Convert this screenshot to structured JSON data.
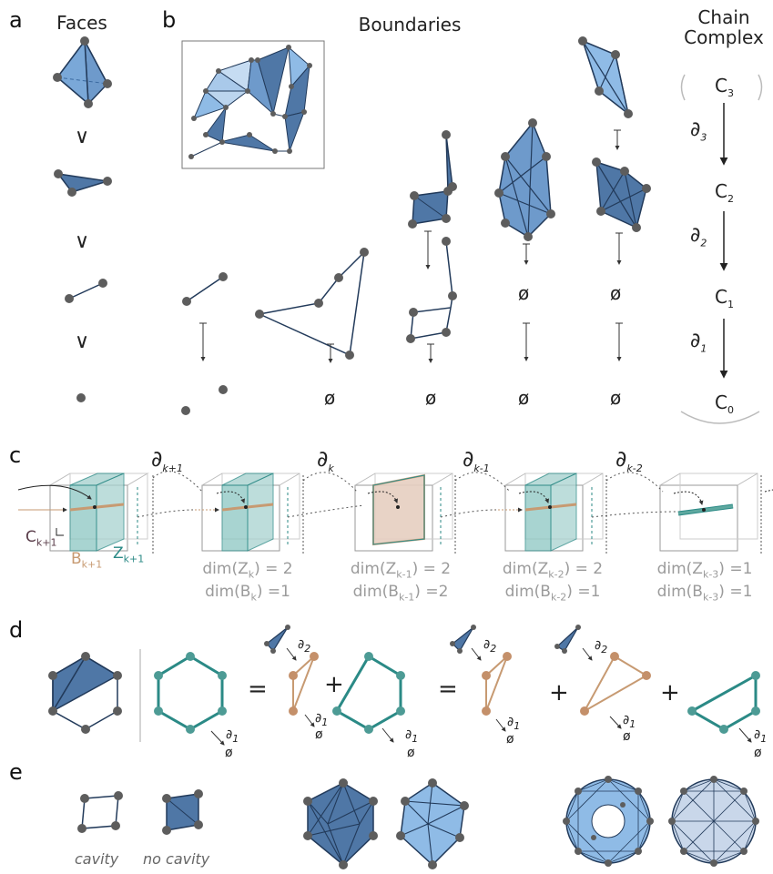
{
  "panels": {
    "a": {
      "letter": "a",
      "title": "Faces",
      "relation": "∨"
    },
    "b": {
      "letter": "b",
      "title": "Boundaries",
      "empty": "ø"
    },
    "chain": {
      "title_line1": "Chain",
      "title_line2": "Complex",
      "spaces": [
        {
          "base": "C",
          "sub": "3"
        },
        {
          "base": "C",
          "sub": "2"
        },
        {
          "base": "C",
          "sub": "1"
        },
        {
          "base": "C",
          "sub": "0"
        }
      ],
      "maps": [
        {
          "base": "∂",
          "sub": "3"
        },
        {
          "base": "∂",
          "sub": "2"
        },
        {
          "base": "∂",
          "sub": "1"
        }
      ]
    },
    "c": {
      "letter": "c",
      "operators": [
        {
          "base": "∂",
          "sub": "k+1"
        },
        {
          "base": "∂",
          "sub": "k"
        },
        {
          "base": "∂",
          "sub": "k-1"
        },
        {
          "base": "∂",
          "sub": "k-2"
        }
      ],
      "space_labels": [
        {
          "base": "C",
          "sub": "k+1"
        },
        {
          "base": "B",
          "sub": "k+1"
        },
        {
          "base": "Z",
          "sub": "k+1"
        }
      ],
      "dims": [
        {
          "z_sub": "k",
          "z_val": "2",
          "b_sub": "k",
          "b_val": "1"
        },
        {
          "z_sub": "k-1",
          "z_val": "2",
          "b_sub": "k-1",
          "b_val": "2"
        },
        {
          "z_sub": "k-2",
          "z_val": "2",
          "b_sub": "k-2",
          "b_val": "1"
        },
        {
          "z_sub": "k-3",
          "z_val": "1",
          "b_sub": "k-3",
          "b_val": "1"
        }
      ]
    },
    "d": {
      "letter": "d",
      "equals": "=",
      "plus": "+",
      "d1": {
        "base": "∂",
        "sub": "1"
      },
      "d2": {
        "base": "∂",
        "sub": "2"
      },
      "empty": "ø"
    },
    "e": {
      "letter": "e",
      "label_cavity": "cavity",
      "label_no_cavity": "no cavity"
    }
  },
  "colors": {
    "node": "#5d5d5d",
    "edge": "#223a5a",
    "face_dark": "#4f77a6",
    "face_light": "#8fbbe6",
    "teal": "#2b8a86",
    "tan": "#c79a72"
  }
}
